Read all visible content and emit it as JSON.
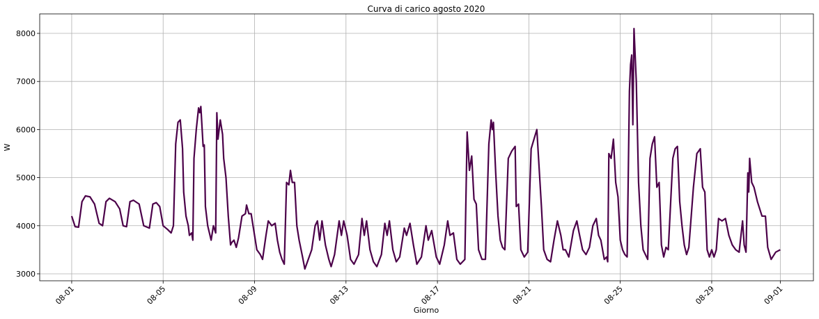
{
  "chart_data": {
    "type": "line",
    "title": "Curva di carico agosto 2020",
    "xlabel": "Giorno",
    "ylabel": "W",
    "color": "#4b0049",
    "grid": true,
    "x": [
      1.0,
      1.15,
      1.3,
      1.45,
      1.6,
      1.8,
      2.0,
      2.2,
      2.35,
      2.5,
      2.65,
      2.9,
      3.1,
      3.25,
      3.4,
      3.55,
      3.7,
      3.95,
      4.15,
      4.4,
      4.55,
      4.7,
      4.85,
      5.0,
      5.2,
      5.35,
      5.45,
      5.55,
      5.65,
      5.75,
      5.85,
      5.9,
      6.0,
      6.1,
      6.15,
      6.25,
      6.3,
      6.35,
      6.45,
      6.55,
      6.6,
      6.65,
      6.75,
      6.8,
      6.85,
      6.95,
      7.0,
      7.1,
      7.2,
      7.3,
      7.35,
      7.4,
      7.5,
      7.6,
      7.65,
      7.75,
      7.85,
      7.95,
      8.0,
      8.1,
      8.2,
      8.3,
      8.45,
      8.6,
      8.65,
      8.75,
      8.85,
      9.0,
      9.1,
      9.25,
      9.35,
      9.5,
      9.6,
      9.75,
      9.9,
      10.0,
      10.1,
      10.2,
      10.3,
      10.4,
      10.5,
      10.57,
      10.65,
      10.75,
      10.85,
      10.95,
      11.1,
      11.2,
      11.35,
      11.5,
      11.65,
      11.75,
      11.85,
      11.95,
      12.1,
      12.25,
      12.35,
      12.5,
      12.7,
      12.8,
      12.9,
      13.05,
      13.2,
      13.35,
      13.55,
      13.7,
      13.8,
      13.9,
      14.05,
      14.2,
      14.35,
      14.55,
      14.7,
      14.8,
      14.9,
      15.05,
      15.2,
      15.35,
      15.55,
      15.65,
      15.8,
      15.95,
      16.1,
      16.3,
      16.5,
      16.6,
      16.75,
      16.95,
      17.1,
      17.3,
      17.45,
      17.55,
      17.7,
      17.85,
      18.0,
      18.2,
      18.3,
      18.4,
      18.5,
      18.6,
      18.7,
      18.8,
      18.95,
      19.1,
      19.25,
      19.35,
      19.4,
      19.45,
      19.55,
      19.65,
      19.75,
      19.85,
      19.95,
      20.1,
      20.25,
      20.4,
      20.45,
      20.55,
      20.65,
      20.8,
      20.95,
      21.1,
      21.35,
      21.45,
      21.55,
      21.65,
      21.8,
      21.95,
      22.1,
      22.25,
      22.4,
      22.5,
      22.6,
      22.75,
      22.95,
      23.1,
      23.2,
      23.35,
      23.5,
      23.65,
      23.8,
      23.95,
      24.05,
      24.15,
      24.3,
      24.4,
      24.45,
      24.5,
      24.6,
      24.7,
      24.8,
      24.9,
      25.0,
      25.1,
      25.2,
      25.3,
      25.4,
      25.45,
      25.5,
      25.55,
      25.6,
      25.7,
      25.8,
      25.9,
      26.0,
      26.1,
      26.2,
      26.3,
      26.4,
      26.5,
      26.6,
      26.7,
      26.8,
      26.9,
      27.0,
      27.1,
      27.3,
      27.4,
      27.5,
      27.6,
      27.7,
      27.8,
      27.9,
      28.0,
      28.2,
      28.35,
      28.5,
      28.6,
      28.7,
      28.8,
      28.9,
      29.0,
      29.1,
      29.2,
      29.3,
      29.45,
      29.6,
      29.75,
      29.9,
      30.05,
      30.2,
      30.35,
      30.42,
      30.5,
      30.58,
      30.62,
      30.66,
      30.75,
      30.85,
      31.0,
      31.2,
      31.35,
      31.45,
      31.6,
      31.8,
      32.0
    ],
    "values": [
      4200,
      3980,
      3970,
      4500,
      4620,
      4600,
      4450,
      4050,
      4000,
      4500,
      4570,
      4500,
      4350,
      4000,
      3980,
      4500,
      4530,
      4450,
      4000,
      3950,
      4450,
      4480,
      4400,
      4000,
      3920,
      3850,
      4000,
      5700,
      6150,
      6200,
      5600,
      4700,
      4200,
      4000,
      3800,
      3850,
      3700,
      5400,
      6000,
      6450,
      6350,
      6480,
      5650,
      5680,
      4400,
      4000,
      3900,
      3700,
      4000,
      3850,
      6350,
      5800,
      6200,
      5900,
      5400,
      5000,
      4200,
      3600,
      3650,
      3700,
      3550,
      3750,
      4200,
      4250,
      4430,
      4250,
      4250,
      3800,
      3500,
      3400,
      3300,
      3800,
      4100,
      4000,
      4050,
      3700,
      3450,
      3300,
      3200,
      4900,
      4850,
      5150,
      4900,
      4900,
      4000,
      3700,
      3350,
      3100,
      3300,
      3500,
      4000,
      4100,
      3700,
      4100,
      3600,
      3300,
      3150,
      3400,
      4100,
      3800,
      4100,
      3800,
      3300,
      3200,
      3400,
      4150,
      3800,
      4100,
      3500,
      3250,
      3150,
      3400,
      4050,
      3800,
      4100,
      3500,
      3250,
      3350,
      3950,
      3800,
      4050,
      3600,
      3200,
      3350,
      4000,
      3700,
      3900,
      3350,
      3200,
      3600,
      4100,
      3800,
      3850,
      3300,
      3200,
      3300,
      5950,
      5150,
      5450,
      4550,
      4450,
      3500,
      3300,
      3300,
      5700,
      6200,
      6000,
      6150,
      5100,
      4200,
      3700,
      3550,
      3500,
      5400,
      5550,
      5650,
      4400,
      4450,
      3500,
      3350,
      3450,
      5600,
      6000,
      5200,
      4400,
      3500,
      3300,
      3250,
      3700,
      4100,
      3800,
      3500,
      3500,
      3350,
      3900,
      4100,
      3850,
      3500,
      3400,
      3550,
      4000,
      4150,
      3800,
      3700,
      3300,
      3350,
      3250,
      5500,
      5400,
      5800,
      4900,
      4600,
      3700,
      3500,
      3400,
      3350,
      6800,
      7350,
      7550,
      6100,
      8100,
      7000,
      4900,
      4000,
      3500,
      3400,
      3300,
      5400,
      5700,
      5850,
      4800,
      4900,
      3600,
      3350,
      3550,
      3500,
      5400,
      5600,
      5650,
      4500,
      4000,
      3600,
      3400,
      3550,
      4800,
      5500,
      5600,
      4800,
      4700,
      3500,
      3350,
      3500,
      3350,
      3500,
      4150,
      4100,
      4150,
      3800,
      3600,
      3500,
      3450,
      4100,
      3600,
      3450,
      5100,
      4700,
      5400,
      4900,
      4800,
      4500,
      4200,
      4200,
      3550,
      3300,
      3450,
      3500
    ],
    "xlim": [
      -0.4,
      33.45
    ],
    "xticks": [
      {
        "value": 1,
        "label": "08-01"
      },
      {
        "value": 5,
        "label": "08-05"
      },
      {
        "value": 9,
        "label": "08-09"
      },
      {
        "value": 13,
        "label": "08-13"
      },
      {
        "value": 17,
        "label": "08-17"
      },
      {
        "value": 21,
        "label": "08-21"
      },
      {
        "value": 25,
        "label": "08-25"
      },
      {
        "value": 29,
        "label": "08-29"
      },
      {
        "value": 32,
        "label": "09-01"
      }
    ],
    "ylim": [
      2855,
      8405
    ],
    "yticks": [
      3000,
      4000,
      5000,
      6000,
      7000,
      8000
    ]
  }
}
